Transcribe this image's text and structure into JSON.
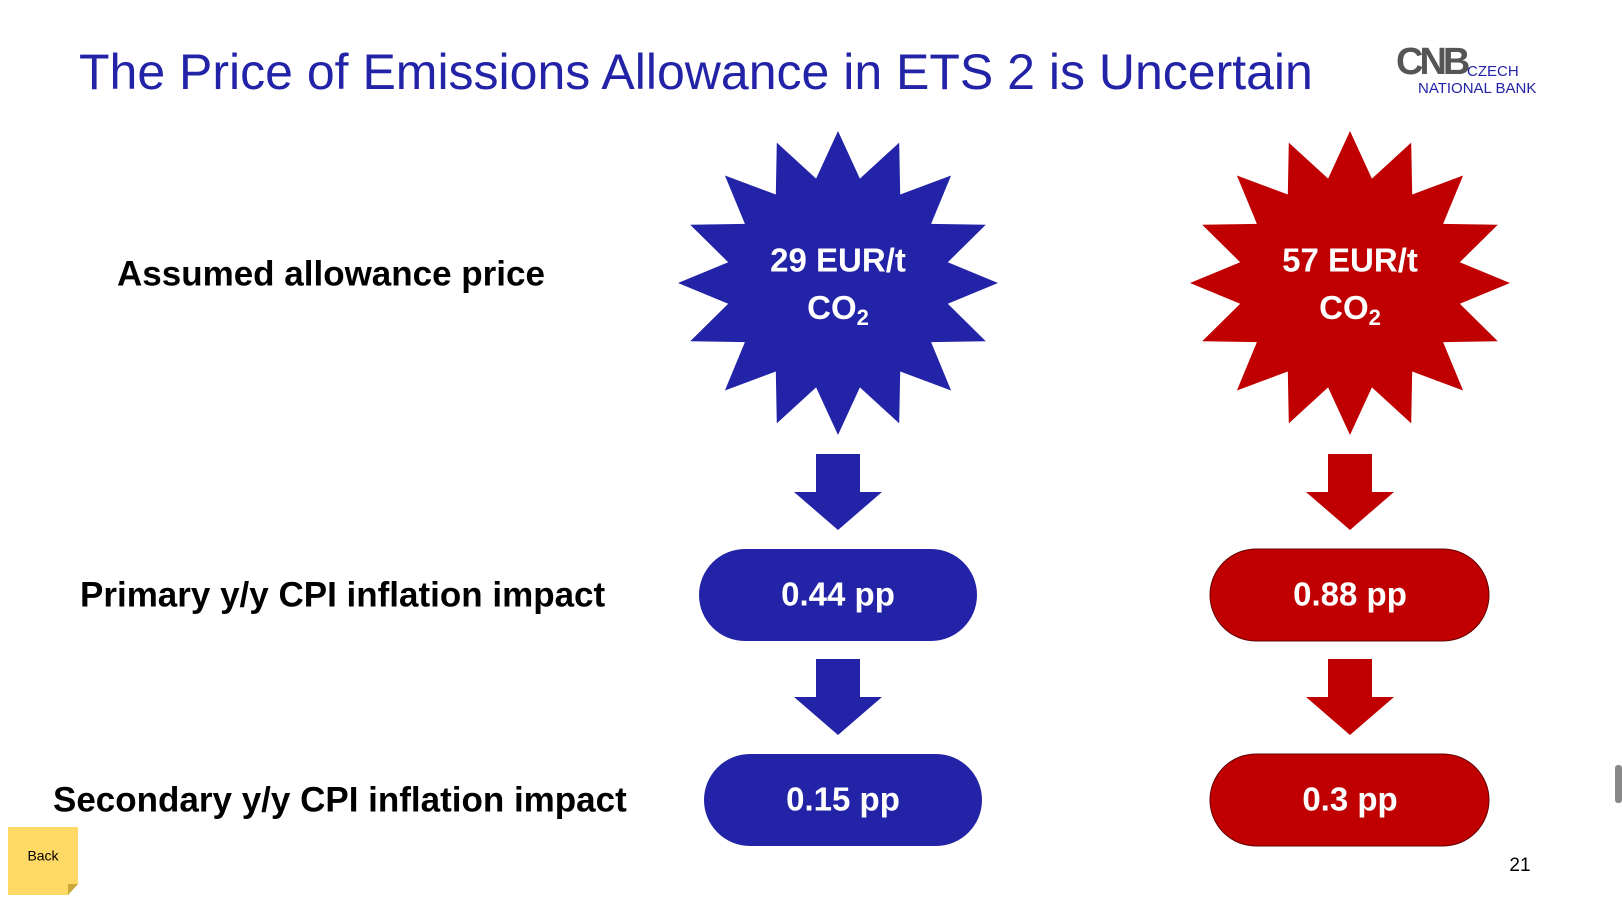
{
  "header": {
    "title": "The Price of Emissions Allowance in ETS 2 is Uncertain",
    "logo": {
      "mark": "CNB",
      "line1": "CZECH",
      "line2": "NATIONAL BANK"
    }
  },
  "rows": [
    "Assumed allowance price",
    "Primary y/y CPI inflation impact",
    "Secondary y/y CPI inflation impact"
  ],
  "scenarios": [
    {
      "price": "29 EUR/t",
      "unit": "CO",
      "unit_sub": "2",
      "primary": "0.44 pp",
      "secondary": "0.15 pp"
    },
    {
      "price": "57 EUR/t",
      "unit": "CO",
      "unit_sub": "2",
      "primary": "0.88 pp",
      "secondary": "0.3 pp"
    }
  ],
  "footer": {
    "back": "Back",
    "page": "21"
  }
}
